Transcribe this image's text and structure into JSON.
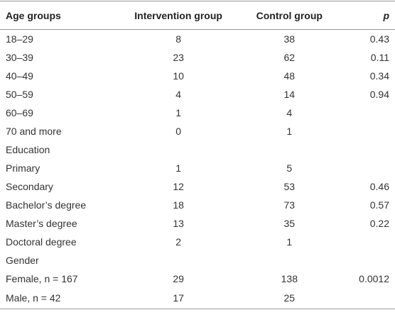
{
  "table": {
    "columns": [
      "Age groups",
      "Intervention group",
      "Control group",
      "p"
    ],
    "rows": [
      [
        "18–29",
        8,
        38,
        0.43
      ],
      [
        "30–39",
        23,
        62,
        0.11
      ],
      [
        "40–49",
        10,
        48,
        0.34
      ],
      [
        "50–59",
        4,
        14,
        0.94
      ],
      [
        "60–69",
        1,
        4,
        null
      ],
      [
        "70 and more",
        0,
        1,
        null
      ],
      [
        "Education",
        null,
        null,
        null
      ],
      [
        "Primary",
        1,
        5,
        null
      ],
      [
        "Secondary",
        12,
        53,
        0.46
      ],
      [
        "Bachelor’s degree",
        18,
        73,
        0.57
      ],
      [
        "Master’s degree",
        13,
        35,
        0.22
      ],
      [
        "Doctoral degree",
        2,
        1,
        null
      ],
      [
        "Gender",
        null,
        null,
        null
      ],
      [
        "Female, n = 167",
        29,
        138,
        0.0012
      ],
      [
        "Male, n = 42",
        17,
        25,
        null
      ]
    ]
  }
}
